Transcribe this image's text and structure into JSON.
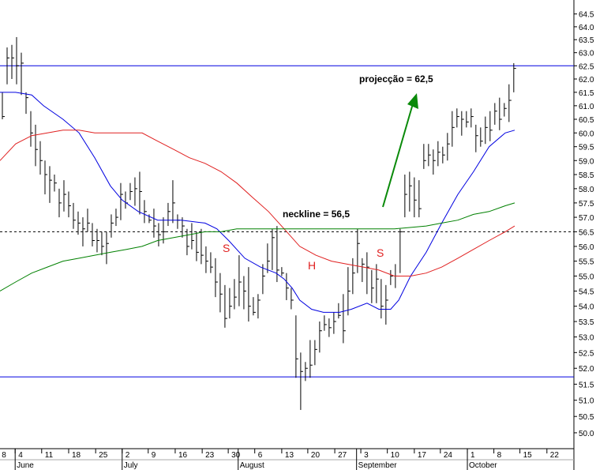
{
  "chart_data": {
    "type": "ohlc",
    "log_scale": true,
    "ylim": [
      49.52,
      65.05
    ],
    "xlim": [
      -0.5,
      120.7
    ],
    "yticks": [
      {
        "value": 50,
        "label": "50.0"
      },
      {
        "value": 50.5,
        "label": "50.5"
      },
      {
        "value": 51,
        "label": "51.0"
      },
      {
        "value": 51.5,
        "label": "51.5"
      },
      {
        "value": 52,
        "label": "52.0"
      },
      {
        "value": 52.5,
        "label": "52.5"
      },
      {
        "value": 53,
        "label": "53.0"
      },
      {
        "value": 53.5,
        "label": "53.5"
      },
      {
        "value": 54,
        "label": "54.0"
      },
      {
        "value": 54.5,
        "label": "54.5"
      },
      {
        "value": 55,
        "label": "55.0"
      },
      {
        "value": 55.5,
        "label": "55.5"
      },
      {
        "value": 56,
        "label": "56.0"
      },
      {
        "value": 56.5,
        "label": "56.5"
      },
      {
        "value": 57,
        "label": "57.0"
      },
      {
        "value": 57.5,
        "label": "57.5"
      },
      {
        "value": 58,
        "label": "58.0"
      },
      {
        "value": 58.5,
        "label": "58.5"
      },
      {
        "value": 59,
        "label": "59.0"
      },
      {
        "value": 59.5,
        "label": "59.5"
      },
      {
        "value": 60,
        "label": "60.0"
      },
      {
        "value": 60.5,
        "label": "60.5"
      },
      {
        "value": 61,
        "label": "61.0"
      },
      {
        "value": 61.5,
        "label": "61.5"
      },
      {
        "value": 62,
        "label": "62.0"
      },
      {
        "value": 62.5,
        "label": "62.5"
      },
      {
        "value": 63,
        "label": "63.0"
      },
      {
        "value": 63.5,
        "label": "63.5"
      },
      {
        "value": 64,
        "label": "64.0"
      },
      {
        "value": 64.5,
        "label": "64.5"
      }
    ],
    "xticks": [
      {
        "value": -0.8,
        "label": "8"
      },
      {
        "value": 2.7,
        "label": "4"
      },
      {
        "value": 8.3,
        "label": "11"
      },
      {
        "value": 14,
        "label": "18"
      },
      {
        "value": 19.7,
        "label": "25"
      },
      {
        "value": 25.3,
        "label": "2"
      },
      {
        "value": 30.8,
        "label": "9"
      },
      {
        "value": 36.5,
        "label": "16"
      },
      {
        "value": 42.2,
        "label": "23"
      },
      {
        "value": 47.7,
        "label": "30"
      },
      {
        "value": 53.3,
        "label": "6"
      },
      {
        "value": 59,
        "label": "13"
      },
      {
        "value": 64.5,
        "label": "20"
      },
      {
        "value": 70.2,
        "label": "27"
      },
      {
        "value": 75.7,
        "label": "3"
      },
      {
        "value": 81.3,
        "label": "10"
      },
      {
        "value": 87,
        "label": "17"
      },
      {
        "value": 92.5,
        "label": "24"
      },
      {
        "value": 98.2,
        "label": "1"
      },
      {
        "value": 103.8,
        "label": "8"
      },
      {
        "value": 109.3,
        "label": "15"
      },
      {
        "value": 115,
        "label": "22"
      }
    ],
    "month_ticks": [
      {
        "value": 2.7,
        "label": "June"
      },
      {
        "value": 25.3,
        "label": "July"
      },
      {
        "value": 49.8,
        "label": "August"
      },
      {
        "value": 74.8,
        "label": "September"
      },
      {
        "value": 98.2,
        "label": "October"
      }
    ],
    "bar_color": "#000000",
    "high": [
      61.5,
      63.2,
      63.3,
      63.6,
      63.0,
      61.5,
      60.8,
      60.3,
      59.7,
      59.0,
      58.8,
      58.5,
      58.0,
      58.3,
      57.9,
      57.5,
      57.2,
      57.0,
      57.3,
      56.8,
      56.6,
      56.5,
      56.5,
      57.1,
      57.3,
      58.2,
      57.9,
      58.2,
      58.4,
      58.6,
      57.6,
      57.1,
      57.3,
      56.8,
      57.0,
      57.5,
      58.3,
      57.1,
      57.0,
      56.6,
      56.8,
      56.5,
      56.6,
      56.0,
      55.8,
      55.6,
      55.1,
      54.7,
      54.6,
      54.9,
      55.7,
      55.0,
      55.3,
      54.3,
      54.4,
      55.4,
      56.1,
      56.6,
      56.7,
      55.3,
      55.1,
      54.6,
      53.7,
      52.5,
      52.2,
      52.9,
      52.9,
      53.5,
      53.7,
      53.6,
      53.8,
      54.1,
      54.4,
      55.3,
      55.6,
      56.6,
      55.6,
      55.8,
      55.2,
      55.4,
      54.9,
      54.7,
      55.2,
      55.4,
      56.6,
      58.5,
      58.6,
      58.4,
      58.3,
      59.6,
      59.6,
      59.4,
      59.7,
      59.5,
      60.0,
      60.8,
      60.9,
      60.8,
      60.8,
      60.9,
      60.3,
      60.2,
      60.6,
      60.8,
      61.1,
      61.3,
      61.1,
      61.8,
      62.6
    ],
    "low": [
      60.5,
      61.8,
      62.0,
      61.8,
      61.4,
      60.7,
      59.5,
      58.8,
      58.5,
      57.8,
      57.5,
      57.9,
      57.0,
      57.2,
      57.0,
      56.6,
      56.4,
      56.0,
      56.5,
      56.0,
      55.8,
      55.7,
      55.4,
      56.3,
      56.7,
      56.9,
      57.3,
      57.6,
      57.4,
      57.1,
      56.8,
      56.8,
      56.3,
      56.0,
      56.1,
      56.7,
      56.8,
      56.6,
      56.3,
      55.7,
      55.9,
      55.5,
      55.4,
      55.1,
      55.1,
      54.3,
      53.8,
      53.3,
      53.6,
      53.9,
      54.0,
      53.9,
      53.5,
      53.7,
      53.6,
      54.4,
      55.1,
      55.2,
      54.8,
      55.0,
      54.2,
      53.9,
      51.7,
      50.7,
      51.6,
      51.7,
      52.1,
      52.5,
      53.2,
      53.0,
      53.1,
      53.6,
      52.8,
      53.7,
      54.4,
      55.1,
      54.8,
      54.4,
      54.1,
      54.1,
      53.6,
      53.4,
      54.7,
      54.6,
      55.1,
      57.0,
      57.2,
      57.0,
      57.0,
      58.7,
      58.8,
      58.5,
      58.8,
      58.9,
      59.0,
      59.5,
      60.2,
      59.9,
      60.2,
      60.2,
      59.3,
      59.5,
      59.6,
      59.7,
      60.3,
      60.1,
      60.6,
      60.4,
      61.5
    ],
    "close": [
      60.6,
      62.8,
      62.8,
      62.5,
      62.6,
      61.3,
      60.0,
      59.4,
      59.0,
      58.5,
      58.3,
      58.2,
      57.5,
      57.8,
      57.4,
      56.9,
      56.8,
      56.6,
      56.8,
      56.2,
      56.2,
      56.0,
      56.1,
      56.8,
      57.0,
      57.8,
      57.5,
      57.9,
      58.0,
      57.9,
      57.2,
      56.9,
      56.7,
      56.4,
      56.5,
      57.2,
      57.5,
      56.9,
      56.7,
      56.0,
      56.2,
      55.8,
      55.7,
      55.5,
      55.3,
      54.8,
      54.4,
      53.6,
      54.0,
      54.3,
      54.8,
      54.5,
      54.0,
      53.8,
      54.2,
      55.0,
      55.5,
      56.3,
      55.2,
      55.1,
      54.6,
      54.2,
      52.3,
      51.9,
      52.0,
      52.1,
      52.6,
      53.2,
      53.4,
      53.3,
      53.5,
      53.7,
      53.2,
      54.5,
      55.1,
      56.1,
      55.4,
      55.3,
      54.6,
      54.9,
      54.0,
      54.2,
      55.0,
      55.0,
      56.5,
      57.8,
      58.1,
      57.6,
      57.3,
      59.0,
      59.2,
      59.0,
      59.3,
      59.2,
      59.6,
      60.2,
      60.6,
      60.5,
      60.4,
      60.6,
      59.9,
      59.7,
      60.2,
      60.1,
      60.8,
      60.5,
      60.9,
      61.2,
      62.4
    ],
    "series": [
      {
        "color": "#0000e0",
        "x": [
          -0.5,
          2.8,
          6.2,
          8.7,
          12.8,
          16.2,
          19.5,
          22.8,
          25.3,
          28.7,
          32.8,
          37.8,
          42.8,
          45.3,
          47.8,
          51.2,
          54.5,
          57.8,
          59.5,
          61.2,
          62.8,
          65.3,
          67.8,
          71.2,
          73.7,
          77,
          79.5,
          82,
          83.7,
          86.2,
          89.5,
          92.8,
          96.2,
          99.5,
          102.8,
          106.2,
          108.2
        ],
        "values": [
          61.5,
          61.5,
          61.4,
          61.0,
          60.5,
          60.0,
          59.1,
          58.1,
          57.6,
          57.2,
          56.9,
          56.9,
          56.8,
          56.6,
          56.2,
          55.6,
          55.3,
          55.1,
          54.9,
          54.6,
          54.2,
          53.9,
          53.8,
          53.8,
          53.9,
          54.1,
          53.9,
          53.9,
          54.2,
          55.0,
          55.8,
          56.8,
          57.8,
          58.6,
          59.5,
          60.0,
          60.1
        ]
      },
      {
        "color": "#e02020",
        "x": [
          -0.5,
          2.8,
          6.2,
          9.5,
          12.8,
          16.2,
          19.5,
          22.8,
          26.2,
          29.5,
          32.8,
          36.2,
          39.5,
          42.8,
          46.2,
          49.5,
          52.8,
          56.2,
          59.5,
          62.8,
          66.2,
          69.5,
          72.8,
          76.2,
          79.5,
          82.8,
          86.2,
          89.5,
          92.8,
          96.2,
          99.5,
          102.8,
          106.2,
          108.2
        ],
        "values": [
          59.0,
          59.6,
          59.9,
          60.0,
          60.1,
          60.1,
          60.0,
          60.0,
          60.0,
          60.0,
          59.7,
          59.4,
          59.1,
          58.9,
          58.6,
          58.2,
          57.7,
          57.2,
          56.6,
          56.0,
          55.7,
          55.5,
          55.4,
          55.3,
          55.2,
          55.0,
          55.0,
          55.1,
          55.3,
          55.6,
          55.9,
          56.2,
          56.5,
          56.7
        ]
      },
      {
        "color": "#008000",
        "x": [
          -0.5,
          2.8,
          6.2,
          9.5,
          12.8,
          16.2,
          19.5,
          22.8,
          26.2,
          29.5,
          32.8,
          36.2,
          39.5,
          42.8,
          46.2,
          49.5,
          56.2,
          62.8,
          69.5,
          76.2,
          82.8,
          89.5,
          92.8,
          96.2,
          99.5,
          102.8,
          106.2,
          108.2
        ],
        "values": [
          54.5,
          54.8,
          55.1,
          55.3,
          55.5,
          55.6,
          55.7,
          55.8,
          55.9,
          56.0,
          56.2,
          56.3,
          56.4,
          56.5,
          56.5,
          56.6,
          56.6,
          56.6,
          56.6,
          56.6,
          56.6,
          56.7,
          56.8,
          56.9,
          57.1,
          57.2,
          57.4,
          57.5
        ]
      }
    ],
    "hlines": [
      {
        "value": 62.5,
        "color": "#0000e0"
      },
      {
        "value": 51.73,
        "color": "#0000e0"
      },
      {
        "value": 56.5,
        "color": "#000000",
        "dashed": true
      }
    ],
    "annotations": [
      "projecção = 62,5",
      "neckline = 56,5",
      "S",
      "H",
      "S"
    ]
  }
}
